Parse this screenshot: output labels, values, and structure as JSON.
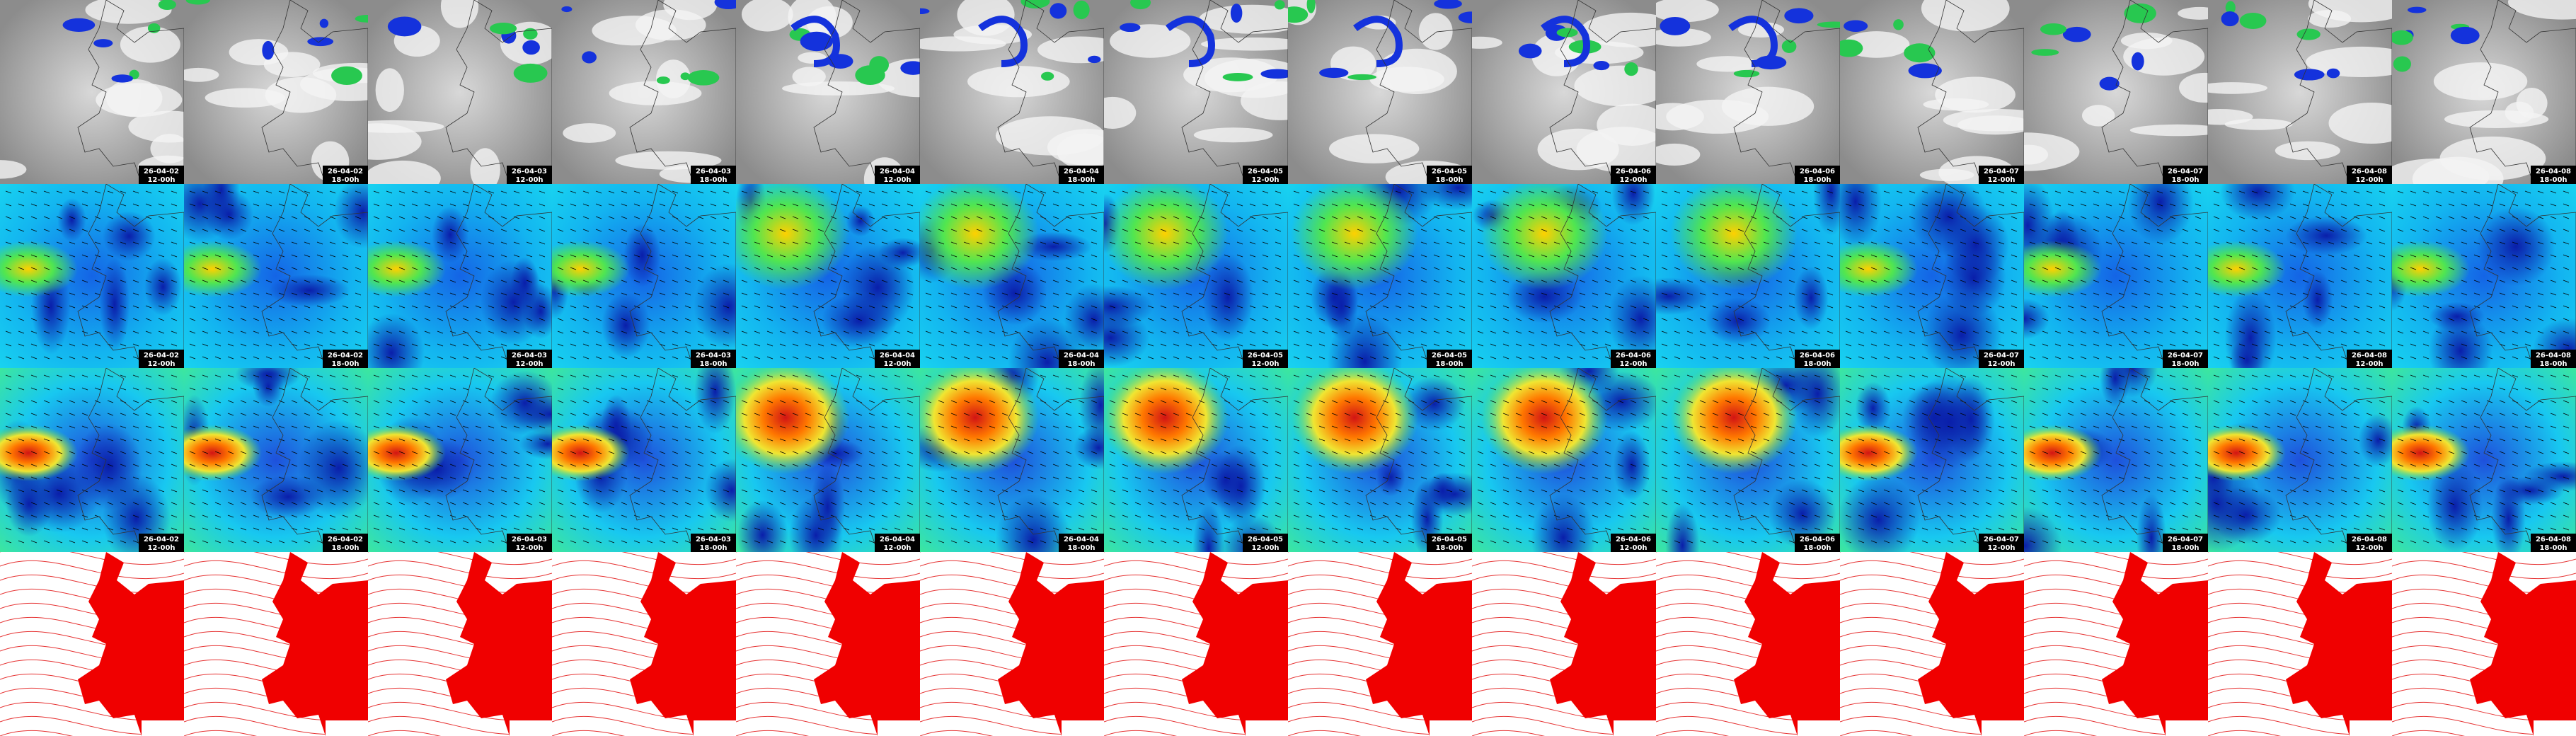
{
  "columns": [
    {
      "date": "26-04-02",
      "time": "12-00h"
    },
    {
      "date": "26-04-02",
      "time": "18-00h"
    },
    {
      "date": "26-04-03",
      "time": "12-00h"
    },
    {
      "date": "26-04-03",
      "time": "18-00h"
    },
    {
      "date": "26-04-04",
      "time": "12-00h"
    },
    {
      "date": "26-04-04",
      "time": "18-00h"
    },
    {
      "date": "26-04-05",
      "time": "12-00h"
    },
    {
      "date": "26-04-05",
      "time": "18-00h"
    },
    {
      "date": "26-04-06",
      "time": "12-00h"
    },
    {
      "date": "26-04-06",
      "time": "18-00h"
    },
    {
      "date": "26-04-07",
      "time": "12-00h"
    },
    {
      "date": "26-04-07",
      "time": "18-00h"
    },
    {
      "date": "26-04-08",
      "time": "12-00h"
    },
    {
      "date": "26-04-08",
      "time": "18-00h"
    }
  ]
}
